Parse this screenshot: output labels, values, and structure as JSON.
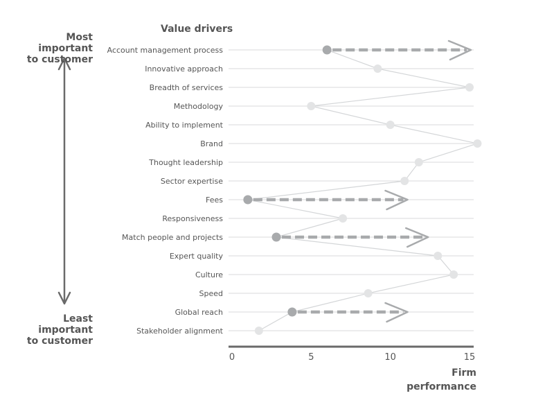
{
  "chart_data": {
    "type": "scatter",
    "title": "Value drivers",
    "xlabel": [
      "Firm",
      "performance"
    ],
    "xlim": [
      0,
      15
    ],
    "xticks": [
      0,
      5,
      10,
      15
    ],
    "importance_axis": {
      "top_label": [
        "Most important",
        "to customer"
      ],
      "bottom_label": [
        "Least important",
        "to customer"
      ]
    },
    "drivers": [
      {
        "label": "Account management process",
        "value": 6,
        "target": 15
      },
      {
        "label": "Innovative approach",
        "value": 9.2
      },
      {
        "label": "Breadth of services",
        "value": 15
      },
      {
        "label": "Methodology",
        "value": 5
      },
      {
        "label": "Ability to implement",
        "value": 10
      },
      {
        "label": "Brand",
        "value": 15.5
      },
      {
        "label": "Thought leadership",
        "value": 11.8
      },
      {
        "label": "Sector expertise",
        "value": 10.9
      },
      {
        "label": "Fees",
        "value": 1,
        "target": 11
      },
      {
        "label": "Responsiveness",
        "value": 7
      },
      {
        "label": "Match people and projects",
        "value": 2.8,
        "target": 12.3
      },
      {
        "label": "Expert quality",
        "value": 13
      },
      {
        "label": "Culture",
        "value": 14
      },
      {
        "label": "Speed",
        "value": 8.6
      },
      {
        "label": "Global reach",
        "value": 3.8,
        "target": 11
      },
      {
        "label": "Stakeholder alignment",
        "value": 1.7
      }
    ],
    "colors": {
      "highlight_point": "#a8aaac",
      "faded_point": "#e3e4e5",
      "connector": "#d4d6d8",
      "gridline": "#d9dadb",
      "arrow": "#a8aaac",
      "axis": "#6a6a6a",
      "text": "#555555"
    },
    "grid": true
  }
}
